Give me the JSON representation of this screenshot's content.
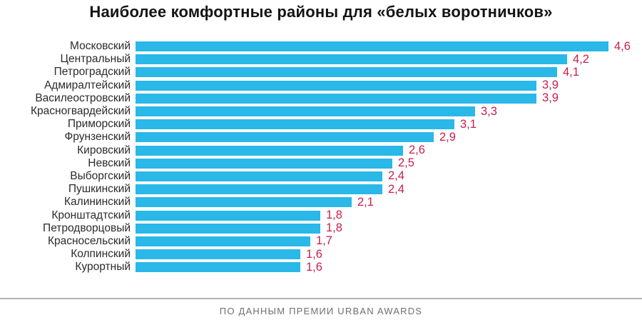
{
  "chart_data": {
    "type": "bar",
    "orientation": "horizontal",
    "title": "Наиболее комфортные районы для «белых воротничков»",
    "categories": [
      "Московский",
      "Центральный",
      "Петроградский",
      "Адмиралтейский",
      "Василеостровский",
      "Красногвардейский",
      "Приморский",
      "Фрунзенский",
      "Кировский",
      "Невский",
      "Выборгский",
      "Пушкинский",
      "Калининский",
      "Кронштадтский",
      "Петродворцовый",
      "Красносельский",
      "Колпинский",
      "Курортный"
    ],
    "values": [
      4.6,
      4.2,
      4.1,
      3.9,
      3.9,
      3.3,
      3.1,
      2.9,
      2.6,
      2.5,
      2.4,
      2.4,
      2.1,
      1.8,
      1.8,
      1.7,
      1.6,
      1.6
    ],
    "value_labels": [
      "4,6",
      "4,2",
      "4,1",
      "3,9",
      "3,9",
      "3,3",
      "3,1",
      "2,9",
      "2,6",
      "2,5",
      "2,4",
      "2,4",
      "2,1",
      "1,8",
      "1,8",
      "1,7",
      "1,6",
      "1,6"
    ],
    "xlabel": "",
    "ylabel": "",
    "xlim": [
      0,
      4.6
    ],
    "grid": false,
    "legend": false
  },
  "footer": {
    "source": "ПО ДАННЫМ ПРЕМИИ URBAN AWARDS"
  },
  "colors": {
    "bar": "#29b8e8",
    "value_text": "#c81d4c",
    "label_text": "#2b2b2b",
    "title_text": "#141414",
    "divider": "#b5b5b5",
    "footer_text": "#6f6f6f"
  }
}
